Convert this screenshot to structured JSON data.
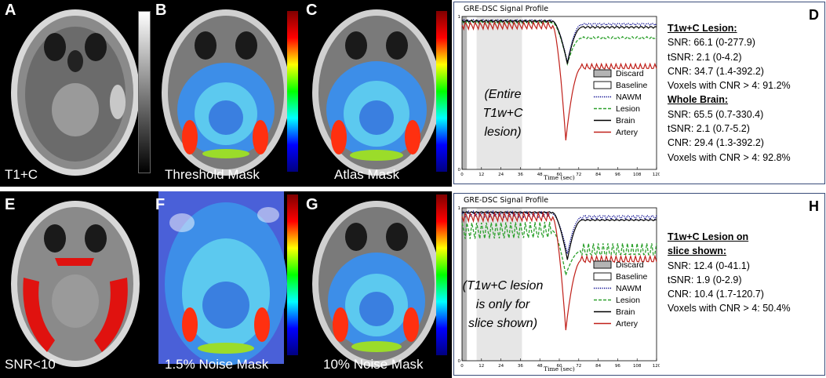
{
  "panels": {
    "A": {
      "label": "A",
      "caption": "T1+C"
    },
    "B": {
      "label": "B",
      "caption": "Threshold Mask"
    },
    "C": {
      "label": "C",
      "caption": "Atlas Mask"
    },
    "E": {
      "label": "E",
      "caption": "SNR<10"
    },
    "F": {
      "label": "F",
      "caption": "1.5% Noise Mask"
    },
    "G": {
      "label": "G",
      "caption": "10% Noise Mask"
    }
  },
  "plot_D": {
    "label": "D",
    "chart_data": {
      "type": "line",
      "title": "GRE-DSC Signal Profile",
      "xlabel": "Time (sec)",
      "ylabel": "",
      "xlim": [
        0,
        120
      ],
      "ylim": [
        0,
        1
      ],
      "xticks": [
        0,
        12,
        24,
        36,
        48,
        60,
        72,
        84,
        96,
        108,
        120
      ],
      "yticks": [
        0,
        1
      ],
      "regions": [
        {
          "name": "Discard",
          "x": [
            0,
            3
          ],
          "color": "#b4b4b4"
        },
        {
          "name": "Baseline",
          "x": [
            9,
            37
          ],
          "color": "#e6e6e6"
        }
      ],
      "annotation": [
        "(Entire",
        "T1w+C",
        "lesion)"
      ],
      "legend": [
        "Discard",
        "Baseline",
        "NAWM",
        "Lesion",
        "Brain",
        "Artery"
      ],
      "series": [
        {
          "name": "NAWM",
          "color": "#00008b",
          "dash": "dot",
          "baseline": 0.97,
          "ripple": 0.01,
          "dip_min": 0.7,
          "dip_t": 65,
          "recover": 0.95
        },
        {
          "name": "Lesion",
          "color": "#2ca02c",
          "dash": "dash",
          "baseline": 0.96,
          "ripple": 0.01,
          "dip_min": 0.69,
          "dip_t": 65,
          "recover": 0.86
        },
        {
          "name": "Brain",
          "color": "#000000",
          "dash": "solid",
          "baseline": 0.97,
          "ripple": 0.008,
          "dip_min": 0.69,
          "dip_t": 65,
          "recover": 0.93
        },
        {
          "name": "Artery",
          "color": "#c0201a",
          "dash": "solid",
          "baseline": 0.94,
          "ripple": 0.025,
          "dip_min": 0.19,
          "dip_t": 64,
          "recover": 0.67
        }
      ]
    },
    "stats": [
      {
        "text": "T1w+C Lesion:",
        "header": true
      },
      {
        "text": "SNR: 66.1 (0-277.9)"
      },
      {
        "text": "tSNR: 2.1 (0-4.2)"
      },
      {
        "text": "CNR: 34.7 (1.4-392.2)"
      },
      {
        "text": "Voxels with CNR > 4: 91.2%"
      },
      {
        "text": "Whole Brain:",
        "header": true
      },
      {
        "text": "SNR: 65.5 (0.7-330.4)"
      },
      {
        "text": "tSNR: 2.1 (0.7-5.2)"
      },
      {
        "text": "CNR: 29.4 (1.3-392.2)"
      },
      {
        "text": "Voxels with CNR > 4: 92.8%"
      }
    ]
  },
  "plot_H": {
    "label": "H",
    "chart_data": {
      "type": "line",
      "title": "GRE-DSC Signal Profile",
      "xlabel": "Time (sec)",
      "ylabel": "",
      "xlim": [
        0,
        120
      ],
      "ylim": [
        0,
        1
      ],
      "xticks": [
        0,
        12,
        24,
        36,
        48,
        60,
        72,
        84,
        96,
        108,
        120
      ],
      "yticks": [
        0,
        1
      ],
      "regions": [
        {
          "name": "Discard",
          "x": [
            0,
            3
          ],
          "color": "#b4b4b4"
        },
        {
          "name": "Baseline",
          "x": [
            9,
            37
          ],
          "color": "#e6e6e6"
        }
      ],
      "annotation": [
        "(T1w+C lesion",
        "is only for",
        "slice shown)"
      ],
      "legend": [
        "Discard",
        "Baseline",
        "NAWM",
        "Lesion",
        "Brain",
        "Artery"
      ],
      "series": [
        {
          "name": "NAWM",
          "color": "#00008b",
          "dash": "dot",
          "baseline": 0.96,
          "ripple": 0.02,
          "dip_min": 0.7,
          "dip_t": 65,
          "recover": 0.94
        },
        {
          "name": "Lesion",
          "color": "#2ca02c",
          "dash": "dash",
          "baseline": 0.85,
          "ripple": 0.06,
          "dip_min": 0.56,
          "dip_t": 64,
          "recover": 0.72
        },
        {
          "name": "Brain",
          "color": "#000000",
          "dash": "solid",
          "baseline": 0.97,
          "ripple": 0.005,
          "dip_min": 0.66,
          "dip_t": 65,
          "recover": 0.92
        },
        {
          "name": "Artery",
          "color": "#c0201a",
          "dash": "solid",
          "baseline": 0.94,
          "ripple": 0.03,
          "dip_min": 0.2,
          "dip_t": 64,
          "recover": 0.66
        }
      ]
    },
    "stats": [
      {
        "text": "T1w+C Lesion on",
        "header": true
      },
      {
        "text": "slice shown:",
        "header": true
      },
      {
        "text": "SNR: 12.4 (0-41.1)"
      },
      {
        "text": "tSNR: 1.9 (0-2.9)"
      },
      {
        "text": "CNR: 10.4 (1.7-120.7)"
      },
      {
        "text": "Voxels with CNR > 4: 50.4%"
      }
    ]
  }
}
